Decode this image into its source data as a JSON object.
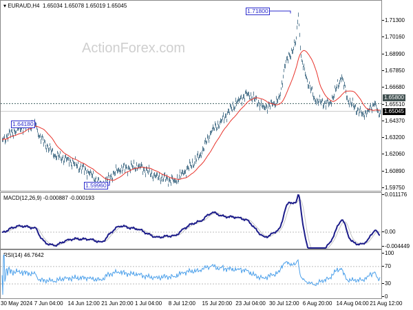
{
  "header": {
    "symbol": "EURAUD,H4",
    "open": "1.65034",
    "high": "1.65078",
    "low": "1.65019",
    "close": "1.65045"
  },
  "watermark": "ActionForex.com",
  "price_axis": [
    "1.71300",
    "1.70160",
    "1.68990",
    "1.67850",
    "1.66680",
    "1.65510",
    "1.64370",
    "1.63200",
    "1.62060",
    "1.60890",
    "1.59750"
  ],
  "price_markers": {
    "level": "1.65800",
    "current": "1.65045"
  },
  "annotations": {
    "high": "1.71800",
    "swing_high": "1.64180",
    "low": "1.59960"
  },
  "macd": {
    "label": "MACD(12,26,9) -0.000887 -0.000193",
    "axis": [
      "0.011176",
      "0.00",
      "-0.004449"
    ]
  },
  "rsi": {
    "label": "RSI(14) 46.7642",
    "axis": [
      "100",
      "70",
      "30",
      "0"
    ]
  },
  "time_axis": [
    "30 May 2024",
    "7 Jun 04:00",
    "14 Jun 12:00",
    "21 Jun 20:00",
    "1 Jul 04:00",
    "8 Jul 12:00",
    "15 Jul 20:00",
    "23 Jul 04:00",
    "30 Jul 12:00",
    "6 Aug 20:00",
    "14 Aug 04:00",
    "21 Aug 12:00"
  ],
  "colors": {
    "bars": "#5b7f95",
    "ma": "#e8322a",
    "macd": "#1c1c8a",
    "signal": "#c4c4c4",
    "rsi": "#4a9fea",
    "level_box": "#3f4f4f",
    "current_box": "#000000"
  },
  "chart_data": {
    "type": "line",
    "title": "EURAUD,H4",
    "ylim": [
      1.5975,
      1.718
    ],
    "tick_times": [
      "2024-05-30T00:00",
      "2024-06-07T04:00",
      "2024-06-14T12:00",
      "2024-06-21T20:00",
      "2024-07-01T04:00",
      "2024-07-08T12:00",
      "2024-07-15T20:00",
      "2024-07-23T04:00",
      "2024-07-30T12:00",
      "2024-08-06T20:00",
      "2024-08-14T04:00",
      "2024-08-21T12:00"
    ],
    "series": [
      {
        "name": "EURAUD,H4",
        "points": [
          [
            "2024-05-30T00:00",
            1.6308
          ],
          [
            "2024-06-03T00:00",
            1.6389
          ],
          [
            "2024-06-07T04:00",
            1.6418
          ],
          [
            "2024-06-07T16:00",
            1.6341
          ],
          [
            "2024-06-11T08:00",
            1.6198
          ],
          [
            "2024-06-14T00:00",
            1.6175
          ],
          [
            "2024-06-18T20:00",
            1.608
          ],
          [
            "2024-06-21T12:00",
            1.5996
          ],
          [
            "2024-06-26T04:00",
            1.6103
          ],
          [
            "2024-07-01T16:00",
            1.6127
          ],
          [
            "2024-07-05T08:00",
            1.6056
          ],
          [
            "2024-07-09T12:00",
            1.6023
          ],
          [
            "2024-07-11T12:00",
            1.608
          ],
          [
            "2024-07-15T00:00",
            1.6198
          ],
          [
            "2024-07-17T12:00",
            1.6365
          ],
          [
            "2024-07-19T16:00",
            1.6436
          ],
          [
            "2024-07-23T08:00",
            1.6579
          ],
          [
            "2024-07-25T12:00",
            1.6626
          ],
          [
            "2024-07-29T00:00",
            1.6531
          ],
          [
            "2024-07-31T00:00",
            1.6555
          ],
          [
            "2024-08-01T12:00",
            1.6602
          ],
          [
            "2024-08-02T12:00",
            1.6816
          ],
          [
            "2024-08-05T00:00",
            1.6983
          ],
          [
            "2024-08-05T12:00",
            1.718
          ],
          [
            "2024-08-06T04:00",
            1.6864
          ],
          [
            "2024-08-07T04:00",
            1.6745
          ],
          [
            "2024-08-09T04:00",
            1.6579
          ],
          [
            "2024-08-12T08:00",
            1.6555
          ],
          [
            "2024-08-15T00:00",
            1.6745
          ],
          [
            "2024-08-16T08:00",
            1.6579
          ],
          [
            "2024-08-19T12:00",
            1.6484
          ],
          [
            "2024-08-20T20:00",
            1.6508
          ],
          [
            "2024-08-22T08:00",
            1.6565
          ],
          [
            "2024-08-23T08:00",
            1.647
          ],
          [
            "2024-08-23T16:00",
            1.65045
          ]
        ]
      }
    ],
    "horizontal_lines": [
      1.6558,
      1.65045
    ],
    "indicators": [
      "moving average",
      "MACD(12,26,9)",
      "RSI(14)"
    ],
    "rsi_levels": [
      30,
      70
    ]
  }
}
